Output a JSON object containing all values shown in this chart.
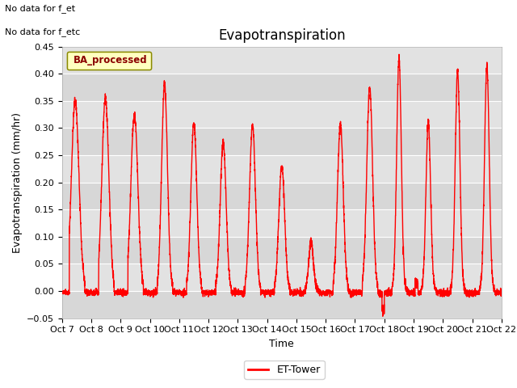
{
  "title": "Evapotranspiration",
  "ylabel": "Evapotranspiration (mm/hr)",
  "xlabel": "Time",
  "ylim": [
    -0.05,
    0.45
  ],
  "xlim_days": 15,
  "line_color": "#FF0000",
  "line_width": 1.0,
  "plot_bg_color": "#DCDCDC",
  "fig_bg_color": "#FFFFFF",
  "top_left_text_line1": "No data for f_et",
  "top_left_text_line2": "No data for f_etc",
  "legend_label": "BA_processed",
  "legend_box_facecolor": "#FFFFC0",
  "legend_box_edgecolor": "#8B8B00",
  "legend_text_color": "#8B0000",
  "bottom_legend_label": "ET-Tower",
  "xtick_labels": [
    "Oct 7",
    "Oct 8",
    "Oct 9",
    "Oct 10",
    "Oct 11",
    "Oct 12",
    "Oct 13",
    "Oct 14",
    "Oct 15",
    "Oct 16",
    "Oct 17",
    "Oct 18",
    "Oct 19",
    "Oct 20",
    "Oct 21",
    "Oct 22"
  ],
  "ytick_values": [
    -0.05,
    0.0,
    0.05,
    0.1,
    0.15,
    0.2,
    0.25,
    0.3,
    0.35,
    0.4,
    0.45
  ],
  "title_fontsize": 12,
  "axis_label_fontsize": 9,
  "tick_fontsize": 8,
  "n_days": 15,
  "n_per_day": 288,
  "peak_heights": [
    0.35,
    0.355,
    0.325,
    0.38,
    0.31,
    0.275,
    0.305,
    0.23,
    0.09,
    0.305,
    0.375,
    0.43,
    0.31,
    0.405,
    0.415
  ],
  "peak_widths": [
    0.13,
    0.12,
    0.12,
    0.1,
    0.1,
    0.1,
    0.1,
    0.1,
    0.08,
    0.1,
    0.1,
    0.08,
    0.08,
    0.08,
    0.08
  ],
  "peak_times": [
    0.45,
    0.48,
    0.47,
    0.5,
    0.5,
    0.5,
    0.5,
    0.5,
    0.5,
    0.5,
    0.5,
    0.5,
    0.5,
    0.5,
    0.5
  ],
  "noise_sigma": 0.004,
  "night_sigma": 0.003,
  "night_mean": -0.003,
  "seed": 42
}
